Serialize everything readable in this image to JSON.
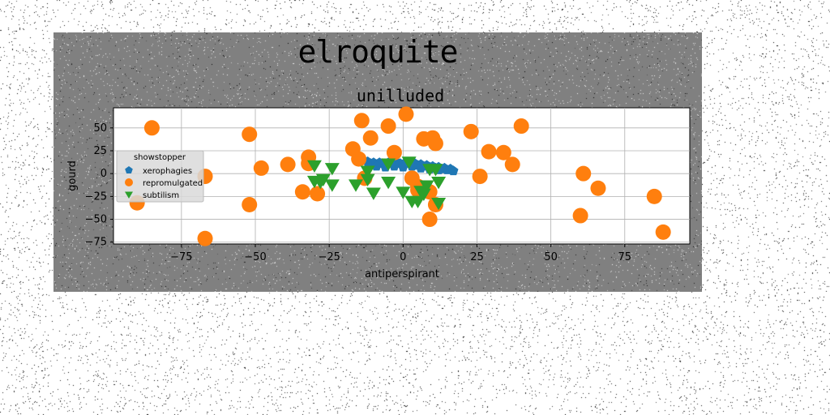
{
  "figure": {
    "suptitle": "elroquite",
    "background": "#808080"
  },
  "chart_data": {
    "type": "scatter",
    "title": "unilluded",
    "xlabel": "antiperspirant",
    "ylabel": "gourd",
    "xlim": [
      -98,
      97
    ],
    "ylim": [
      -77,
      72
    ],
    "xticks": [
      -75,
      -50,
      -25,
      0,
      25,
      50,
      75
    ],
    "yticks": [
      50,
      25,
      0,
      -25,
      -50,
      -75
    ],
    "xtick_labels": [
      "−75",
      "−50",
      "−25",
      "0",
      "25",
      "50",
      "75"
    ],
    "ytick_labels": [
      "50",
      "25",
      "0",
      "−25",
      "−50",
      "−75"
    ],
    "grid": true,
    "legend": {
      "title": "showstopper",
      "placement": "center-left"
    },
    "series": [
      {
        "name": "xerophagies",
        "marker": "pentagon",
        "color": "#1f77b4",
        "points": [
          [
            -12,
            13
          ],
          [
            -11,
            11
          ],
          [
            -10,
            12
          ],
          [
            -9,
            10
          ],
          [
            -8,
            12
          ],
          [
            -7,
            11
          ],
          [
            -6,
            10
          ],
          [
            -5,
            12
          ],
          [
            -4,
            11
          ],
          [
            -3,
            10
          ],
          [
            -2,
            12
          ],
          [
            -1,
            11
          ],
          [
            0,
            10
          ],
          [
            1,
            12
          ],
          [
            2,
            11
          ],
          [
            3,
            10
          ],
          [
            4,
            11
          ],
          [
            5,
            9
          ],
          [
            6,
            10
          ],
          [
            7,
            8
          ],
          [
            8,
            9
          ],
          [
            9,
            7
          ],
          [
            10,
            8
          ],
          [
            11,
            6
          ],
          [
            12,
            7
          ],
          [
            13,
            5
          ],
          [
            14,
            6
          ],
          [
            15,
            4
          ],
          [
            16,
            5
          ],
          [
            17,
            3
          ],
          [
            -9,
            8
          ],
          [
            -6,
            7
          ],
          [
            -3,
            8
          ],
          [
            0,
            7
          ],
          [
            3,
            8
          ],
          [
            6,
            6
          ],
          [
            9,
            5
          ],
          [
            12,
            4
          ]
        ]
      },
      {
        "name": "repromulgated",
        "marker": "circle",
        "color": "#ff7f0e",
        "points": [
          [
            -85,
            50
          ],
          [
            -90,
            -32
          ],
          [
            -67,
            -3
          ],
          [
            -67,
            -71
          ],
          [
            -52,
            43
          ],
          [
            -52,
            -34
          ],
          [
            -48,
            6
          ],
          [
            -39,
            10
          ],
          [
            -34,
            -20
          ],
          [
            -32,
            18
          ],
          [
            -32,
            11
          ],
          [
            -29,
            -22
          ],
          [
            -17,
            27
          ],
          [
            -15,
            16
          ],
          [
            -14,
            58
          ],
          [
            -13,
            -5
          ],
          [
            -11,
            39
          ],
          [
            -5,
            52
          ],
          [
            -3,
            23
          ],
          [
            1,
            65
          ],
          [
            7,
            38
          ],
          [
            10,
            39
          ],
          [
            11,
            33
          ],
          [
            3,
            -5
          ],
          [
            5,
            -14
          ],
          [
            5,
            -18
          ],
          [
            9,
            -20
          ],
          [
            11,
            -34
          ],
          [
            9,
            -50
          ],
          [
            23,
            46
          ],
          [
            26,
            -3
          ],
          [
            29,
            24
          ],
          [
            34,
            23
          ],
          [
            37,
            10
          ],
          [
            40,
            52
          ],
          [
            60,
            -46
          ],
          [
            61,
            0
          ],
          [
            66,
            -16
          ],
          [
            85,
            -25
          ],
          [
            88,
            -64
          ]
        ]
      },
      {
        "name": "subtilism",
        "marker": "triangle-down",
        "color": "#2ca02c",
        "points": [
          [
            -30,
            9
          ],
          [
            -30,
            -8
          ],
          [
            -28,
            -9
          ],
          [
            -27,
            -6
          ],
          [
            -24,
            6
          ],
          [
            -24,
            -12
          ],
          [
            -16,
            -12
          ],
          [
            -12,
            3
          ],
          [
            -12,
            -6
          ],
          [
            -10,
            -21
          ],
          [
            -5,
            11
          ],
          [
            -5,
            -9
          ],
          [
            0,
            -20
          ],
          [
            2,
            13
          ],
          [
            3,
            -30
          ],
          [
            5,
            -30
          ],
          [
            6,
            -19
          ],
          [
            7,
            -22
          ],
          [
            8,
            -13
          ],
          [
            9,
            5
          ],
          [
            11,
            5
          ],
          [
            12,
            -32
          ],
          [
            12,
            -9
          ]
        ]
      }
    ]
  }
}
